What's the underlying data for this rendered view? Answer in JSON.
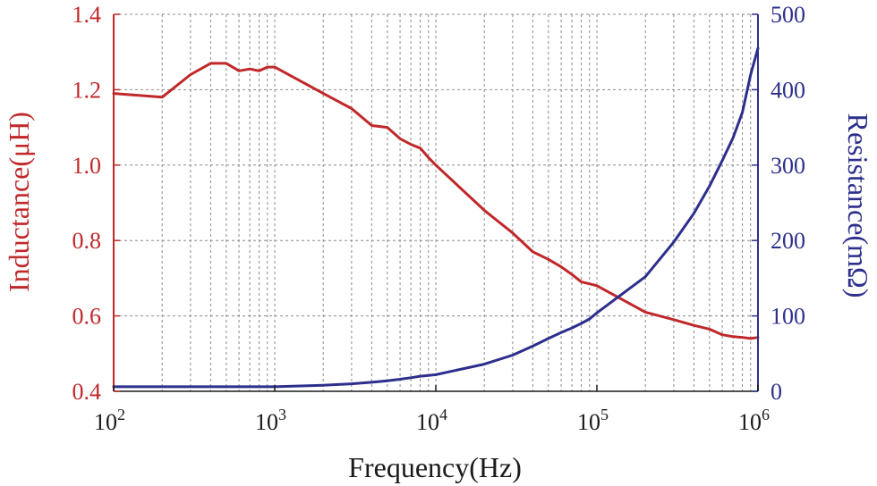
{
  "chart_data": {
    "type": "line",
    "xscale": "log",
    "xlabel": "Frequency(Hz)",
    "xlim": [
      100,
      1000000
    ],
    "x_ticks": [
      {
        "base": "10",
        "exp": "2"
      },
      {
        "base": "10",
        "exp": "3"
      },
      {
        "base": "10",
        "exp": "4"
      },
      {
        "base": "10",
        "exp": "5"
      },
      {
        "base": "10",
        "exp": "6"
      }
    ],
    "left_axis": {
      "label": "Inductance(μH)",
      "ylim": [
        0.4,
        1.4
      ],
      "ticks": [
        "0.4",
        "0.6",
        "0.8",
        "1.0",
        "1.2",
        "1.4"
      ],
      "color": "#c0282a"
    },
    "right_axis": {
      "label": "Resistance(mΩ)",
      "ylim": [
        0,
        500
      ],
      "ticks": [
        "0",
        "100",
        "200",
        "300",
        "400",
        "500"
      ],
      "color": "#2d2f8c"
    },
    "grid": true,
    "series": [
      {
        "name": "Inductance",
        "axis": "left",
        "color": "#c0282a",
        "x": [
          100,
          200,
          300,
          400,
          500,
          600,
          700,
          800,
          900,
          1000,
          2000,
          3000,
          4000,
          5000,
          6000,
          7000,
          8000,
          9000,
          10000,
          20000,
          30000,
          40000,
          50000,
          60000,
          70000,
          80000,
          90000,
          100000,
          200000,
          300000,
          400000,
          500000,
          600000,
          700000,
          800000,
          900000,
          1000000
        ],
        "y": [
          1.19,
          1.18,
          1.24,
          1.27,
          1.27,
          1.25,
          1.255,
          1.25,
          1.26,
          1.26,
          1.19,
          1.15,
          1.105,
          1.1,
          1.07,
          1.055,
          1.045,
          1.02,
          1.0,
          0.88,
          0.82,
          0.77,
          0.75,
          0.73,
          0.71,
          0.69,
          0.685,
          0.68,
          0.61,
          0.59,
          0.575,
          0.565,
          0.55,
          0.545,
          0.543,
          0.54,
          0.543
        ]
      },
      {
        "name": "Resistance",
        "axis": "right",
        "color": "#2d2f8c",
        "x": [
          100,
          200,
          300,
          400,
          500,
          600,
          700,
          800,
          900,
          1000,
          2000,
          3000,
          4000,
          5000,
          6000,
          7000,
          8000,
          9000,
          10000,
          20000,
          30000,
          40000,
          50000,
          60000,
          70000,
          80000,
          90000,
          100000,
          200000,
          300000,
          400000,
          500000,
          600000,
          700000,
          800000,
          900000,
          1000000
        ],
        "y": [
          6,
          6,
          6,
          6,
          6,
          6,
          6,
          6,
          6,
          6,
          8,
          10,
          12,
          14,
          16,
          18,
          20,
          21,
          22,
          36,
          48,
          60,
          70,
          78,
          84,
          90,
          96,
          104,
          152,
          198,
          236,
          272,
          306,
          336,
          370,
          420,
          455
        ]
      }
    ]
  }
}
